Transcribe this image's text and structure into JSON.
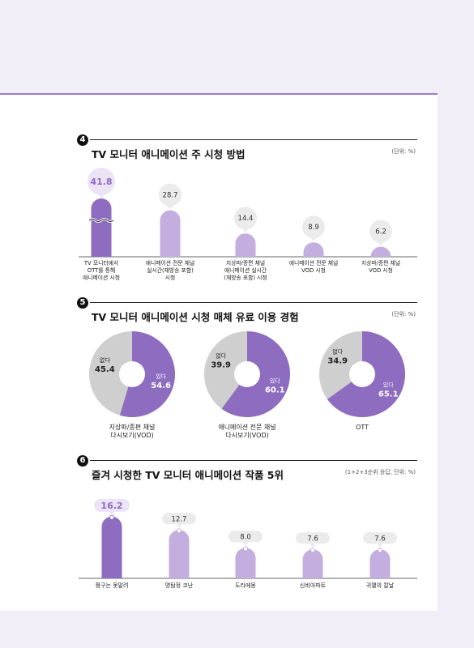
{
  "chart_data": [
    {
      "type": "bar",
      "number": "4",
      "title": "TV 모니터 애니메이션 주 시청 방법",
      "unit": "(단위: %)",
      "categories": [
        [
          "TV 모니터에서",
          "OTT를 통해",
          "애니메이션 시청"
        ],
        [
          "애니메이션 전문 채널",
          "실시간(재방송 포함)",
          "시청"
        ],
        [
          "지상파/종편 채널",
          "애니메이션 실시간",
          "(재방송 포함) 시청"
        ],
        [
          "애니메이션 전문 채널",
          "VOD 시청"
        ],
        [
          "지상파/종편 채널",
          "VOD 시청"
        ]
      ],
      "values": [
        41.8,
        28.7,
        14.4,
        8.9,
        6.2
      ],
      "axis_break_on_first": true
    },
    {
      "type": "pie",
      "number": "5",
      "title": "TV 모니터 애니메이션 시청 매체 유료 이용 경험",
      "unit": "(단위: %)",
      "slice_labels": [
        "있다",
        "없다"
      ],
      "pies": [
        {
          "name": [
            "지상파/종편 채널",
            "다시보기(VOD)"
          ],
          "values": [
            54.6,
            45.4
          ]
        },
        {
          "name": [
            "애니메이션 전문 채널",
            "다시보기(VOD)"
          ],
          "values": [
            60.1,
            39.9
          ]
        },
        {
          "name": [
            "OTT"
          ],
          "values": [
            65.1,
            34.9
          ]
        }
      ]
    },
    {
      "type": "bar",
      "number": "6",
      "title": "즐겨 시청한 TV 모니터 애니메이션 작품 5위",
      "unit": "(1+2+3순위 응답, 단위: %)",
      "categories": [
        [
          "짱구는 못말려"
        ],
        [
          "명탐정 코난"
        ],
        [
          "도라에몽"
        ],
        [
          "신비아파트"
        ],
        [
          "귀멸의 칼날"
        ]
      ],
      "values": [
        16.2,
        12.7,
        8.0,
        7.6,
        7.6
      ]
    }
  ],
  "colors": {
    "dark_purple": "#8e6cc0",
    "light_purple": "#c4aee0",
    "gray": "#cfcfcf",
    "highlight_bubble": "#ece3f6",
    "bubble": "#ebebeb"
  }
}
